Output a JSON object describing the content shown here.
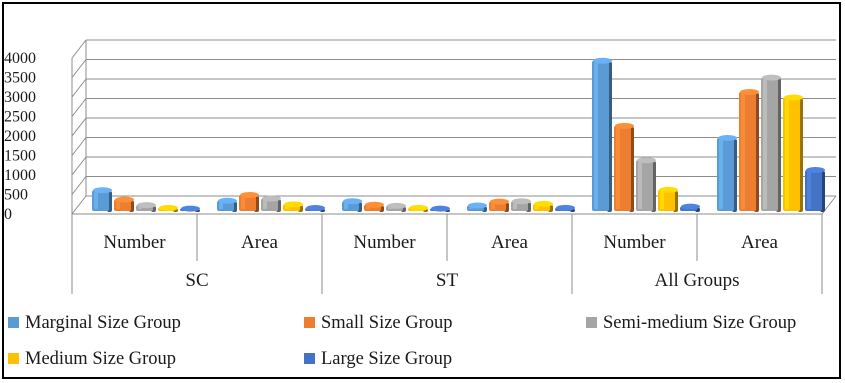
{
  "chart_data": {
    "type": "bar",
    "title": "",
    "xlabel": "",
    "ylabel": "",
    "ylim": [
      0,
      4000
    ],
    "yticks": [
      0,
      500,
      1000,
      1500,
      2000,
      2500,
      3000,
      3500,
      4000
    ],
    "grid": true,
    "three_d": true,
    "legend_position": "bottom",
    "groups": [
      "SC",
      "ST",
      "All Groups"
    ],
    "categories": [
      "Number",
      "Area",
      "Number",
      "Area",
      "Number",
      "Area"
    ],
    "category_group": [
      "SC",
      "SC",
      "ST",
      "ST",
      "All Groups",
      "All Groups"
    ],
    "series": [
      {
        "name": "Marginal Size Group",
        "color": "#5b9bd5",
        "values": [
          480,
          210,
          200,
          90,
          3800,
          1820
        ]
      },
      {
        "name": "Small Size Group",
        "color": "#ed7d31",
        "values": [
          240,
          360,
          110,
          190,
          2130,
          3000
        ]
      },
      {
        "name": "Semi-medium Size Group",
        "color": "#a5a5a5",
        "values": [
          100,
          270,
          80,
          200,
          1250,
          3370
        ]
      },
      {
        "name": "Medium Size Group",
        "color": "#ffc000",
        "values": [
          30,
          120,
          25,
          130,
          490,
          2860
        ]
      },
      {
        "name": "Large Size Group",
        "color": "#4472c4",
        "values": [
          10,
          25,
          10,
          30,
          60,
          1000
        ]
      }
    ]
  }
}
